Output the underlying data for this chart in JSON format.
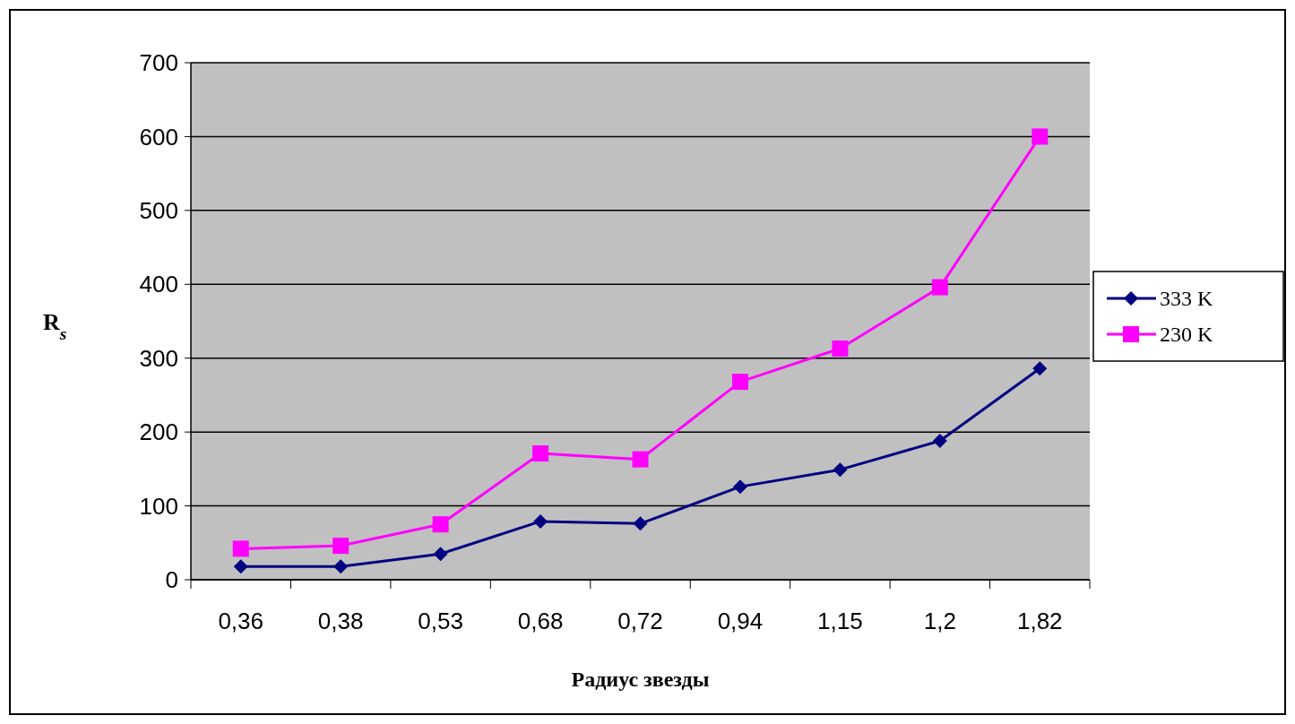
{
  "chart_data": {
    "type": "line",
    "xlabel": "Радиус звезды",
    "ylabel": "R$_{s}$",
    "categories": [
      "0,36",
      "0,38",
      "0,53",
      "0,68",
      "0,72",
      "0,94",
      "1,15",
      "1,2",
      "1,82"
    ],
    "series": [
      {
        "name": "333 K",
        "color": "#000080",
        "marker": "diamond",
        "values": [
          18,
          18,
          35,
          79,
          76,
          126,
          149,
          188,
          286
        ]
      },
      {
        "name": "230 K",
        "color": "#ff00ff",
        "marker": "square",
        "values": [
          42,
          46,
          75,
          171,
          163,
          268,
          313,
          396,
          600
        ]
      }
    ],
    "ylim": [
      0,
      700
    ],
    "yticks": [
      0,
      100,
      200,
      300,
      400,
      500,
      600,
      700
    ],
    "grid": "y",
    "legend": "right"
  }
}
